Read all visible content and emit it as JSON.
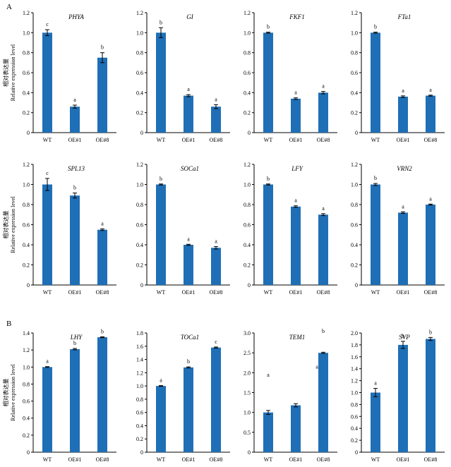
{
  "panel_labels": [
    "A",
    "B"
  ],
  "ylabel": {
    "cn": "相对表达量",
    "en": "Relative expression level"
  },
  "bar_color": "#1f6fb6",
  "chart_data": [
    {
      "type": "bar",
      "title": "PHYA",
      "categories": [
        "WT",
        "OE#1",
        "OE#8"
      ],
      "values": [
        1.0,
        0.26,
        0.75
      ],
      "errors": [
        0.03,
        0.015,
        0.05
      ],
      "letters": [
        "c",
        "a",
        "b"
      ],
      "ylim": [
        0,
        1.2
      ],
      "yticks": [
        "0",
        "0.2",
        "0.4",
        "0.6",
        "0.8",
        "1.0",
        "1.2"
      ]
    },
    {
      "type": "bar",
      "title": "GI",
      "categories": [
        "WT",
        "OE#1",
        "OE#8"
      ],
      "values": [
        1.0,
        0.37,
        0.26
      ],
      "errors": [
        0.05,
        0.01,
        0.02
      ],
      "letters": [
        "b",
        "a",
        "a"
      ],
      "ylim": [
        0,
        1.2
      ],
      "yticks": [
        "0",
        "0.2",
        "0.4",
        "0.6",
        "0.8",
        "1.0",
        "1.2"
      ]
    },
    {
      "type": "bar",
      "title": "FKF1",
      "categories": [
        "WT",
        "OE#1",
        "OE#8"
      ],
      "values": [
        1.0,
        0.34,
        0.4
      ],
      "errors": [
        0.005,
        0.008,
        0.012
      ],
      "letters": [
        "b",
        "a",
        "a"
      ],
      "ylim": [
        0,
        1.2
      ],
      "yticks": [
        "0",
        "0.2",
        "0.4",
        "0.6",
        "0.8",
        "1.0",
        "1.2"
      ]
    },
    {
      "type": "bar",
      "title": "FTa1",
      "categories": [
        "WT",
        "OE#1",
        "OE#8"
      ],
      "values": [
        1.0,
        0.36,
        0.37
      ],
      "errors": [
        0.005,
        0.008,
        0.005
      ],
      "letters": [
        "b",
        "a",
        "a"
      ],
      "ylim": [
        0,
        1.2
      ],
      "yticks": [
        "0",
        "0.2",
        "0.4",
        "0.6",
        "0.8",
        "1.0",
        "1.2"
      ]
    },
    {
      "type": "bar",
      "title": "SPL13",
      "categories": [
        "WT",
        "OE#1",
        "OE#8"
      ],
      "values": [
        1.0,
        0.89,
        0.55
      ],
      "errors": [
        0.06,
        0.025,
        0.008
      ],
      "letters": [
        "c",
        "b",
        "a"
      ],
      "ylim": [
        0,
        1.2
      ],
      "yticks": [
        "0",
        "0.2",
        "0.4",
        "0.6",
        "0.8",
        "1.0",
        "1.2"
      ]
    },
    {
      "type": "bar",
      "title": "SOCa1",
      "categories": [
        "WT",
        "OE#1",
        "OE#8"
      ],
      "values": [
        1.0,
        0.4,
        0.37
      ],
      "errors": [
        0.005,
        0.005,
        0.012
      ],
      "letters": [
        "b",
        "a",
        "a"
      ],
      "ylim": [
        0,
        1.2
      ],
      "yticks": [
        "0",
        "0.2",
        "0.4",
        "0.6",
        "0.8",
        "1.0",
        "1.2"
      ]
    },
    {
      "type": "bar",
      "title": "LFY",
      "categories": [
        "WT",
        "OE#1",
        "OE#8"
      ],
      "values": [
        1.0,
        0.78,
        0.7
      ],
      "errors": [
        0.005,
        0.008,
        0.01
      ],
      "letters": [
        "b",
        "a",
        "a"
      ],
      "ylim": [
        0,
        1.2
      ],
      "yticks": [
        "0",
        "0.2",
        "0.4",
        "0.6",
        "0.8",
        "1.0",
        "1.2"
      ]
    },
    {
      "type": "bar",
      "title": "VRN2",
      "categories": [
        "WT",
        "OE#1",
        "OE#8"
      ],
      "values": [
        1.0,
        0.72,
        0.8
      ],
      "errors": [
        0.01,
        0.008,
        0.005
      ],
      "letters": [
        "b",
        "a",
        "a"
      ],
      "ylim": [
        0,
        1.2
      ],
      "yticks": [
        "0",
        "0.2",
        "0.4",
        "0.6",
        "0.8",
        "1.0",
        "1.2"
      ]
    },
    {
      "type": "bar",
      "title": "LHY",
      "categories": [
        "WT",
        "OE#1",
        "OE#8"
      ],
      "values": [
        1.0,
        1.21,
        1.35
      ],
      "errors": [
        0.005,
        0.008,
        0.005
      ],
      "letters": [
        "a",
        "b",
        "b"
      ],
      "ylim": [
        0,
        1.4
      ],
      "yticks": [
        "0",
        "0.2",
        "0.4",
        "0.6",
        "0.8",
        "1.0",
        "1.2",
        "1.4"
      ]
    },
    {
      "type": "bar",
      "title": "TOCa1",
      "categories": [
        "WT",
        "OE#1",
        "OE#8"
      ],
      "values": [
        1.0,
        1.28,
        1.58
      ],
      "errors": [
        0.005,
        0.008,
        0.008
      ],
      "letters": [
        "a",
        "b",
        "c"
      ],
      "ylim": [
        0,
        1.8
      ],
      "yticks": [
        "0",
        "0.2",
        "0.4",
        "0.6",
        "0.8",
        "1.0",
        "1.2",
        "1.4",
        "1.6",
        "1.8"
      ]
    },
    {
      "type": "bar",
      "title": "TEM1",
      "categories": [
        "WT",
        "OE#1",
        "OE#8"
      ],
      "values": [
        1.0,
        1.18,
        2.5
      ],
      "errors": [
        0.05,
        0.04,
        0.015
      ],
      "letters": [
        "a",
        "",
        "b"
      ],
      "letter_positions": [
        1.9,
        null,
        3.0
      ],
      "extra_letter": {
        "index": 2,
        "text": "a",
        "value": 2.1
      },
      "ylim": [
        0,
        3.0
      ],
      "yticks": [
        "0",
        "0.5",
        "1.0",
        "1.5",
        "2.0",
        "2.5",
        "3.0"
      ]
    },
    {
      "type": "bar",
      "title": "SVP",
      "categories": [
        "WT",
        "OE#1",
        "OE#8"
      ],
      "values": [
        1.0,
        1.8,
        1.9
      ],
      "errors": [
        0.07,
        0.06,
        0.025
      ],
      "letters": [
        "a",
        "b",
        "b"
      ],
      "ylim": [
        0,
        2.0
      ],
      "yticks": [
        "0",
        "0.2",
        "0.4",
        "0.6",
        "0.8",
        "1.0",
        "1.2",
        "1.4",
        "1.6",
        "1.8",
        "2.0"
      ]
    }
  ]
}
